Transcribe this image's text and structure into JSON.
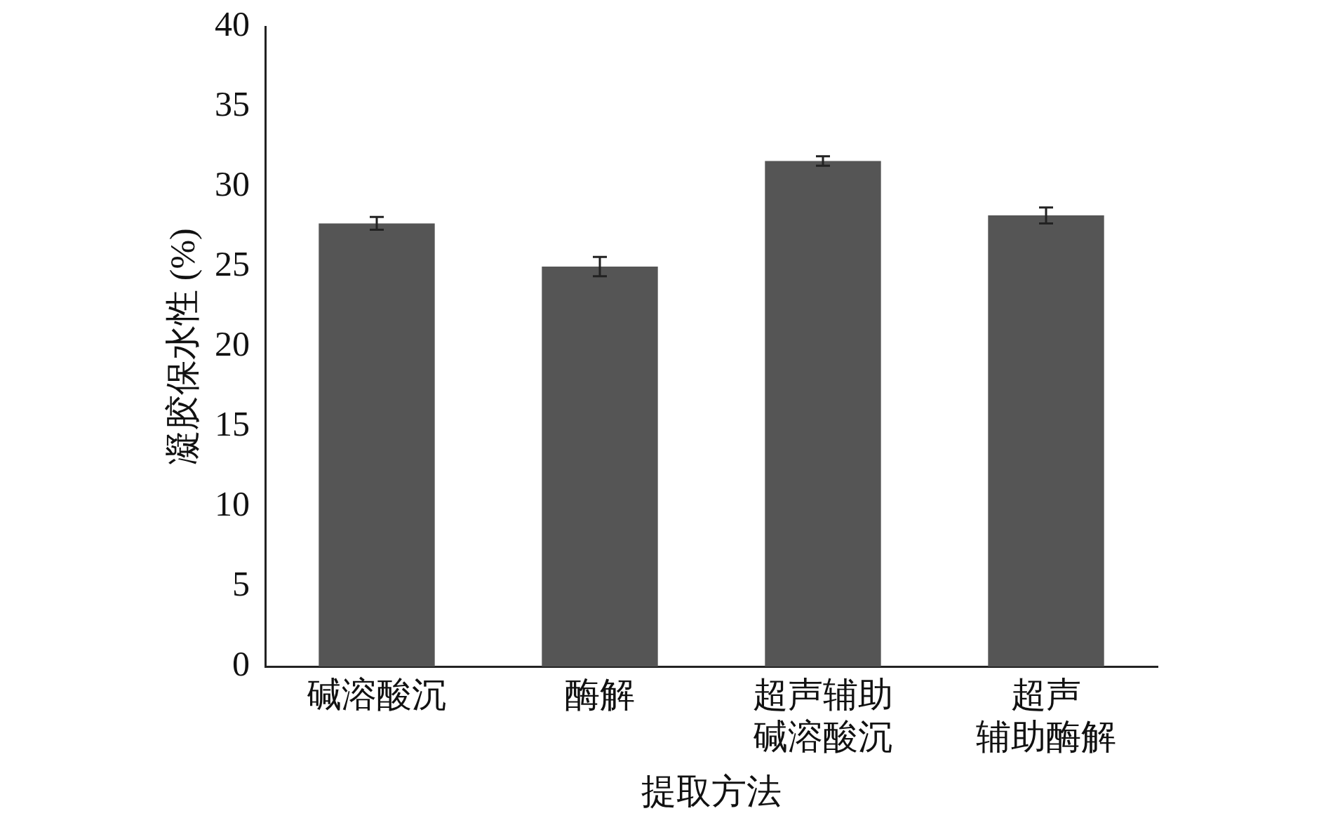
{
  "chart_data": {
    "type": "bar",
    "xlabel": "提取方法",
    "ylabel": "凝胶保水性 (%)",
    "categories": [
      "碱溶酸沉",
      "酶解",
      "超声辅助碱溶酸沉",
      "超声辅助酶解"
    ],
    "values": [
      27.7,
      25.0,
      31.6,
      28.2
    ],
    "errors": [
      0.4,
      0.6,
      0.3,
      0.5
    ],
    "color": "#555555",
    "ylim": [
      0,
      40
    ],
    "yticks": [
      0,
      5,
      10,
      15,
      20,
      25,
      30,
      35,
      40
    ],
    "grid": false,
    "legend": false
  }
}
